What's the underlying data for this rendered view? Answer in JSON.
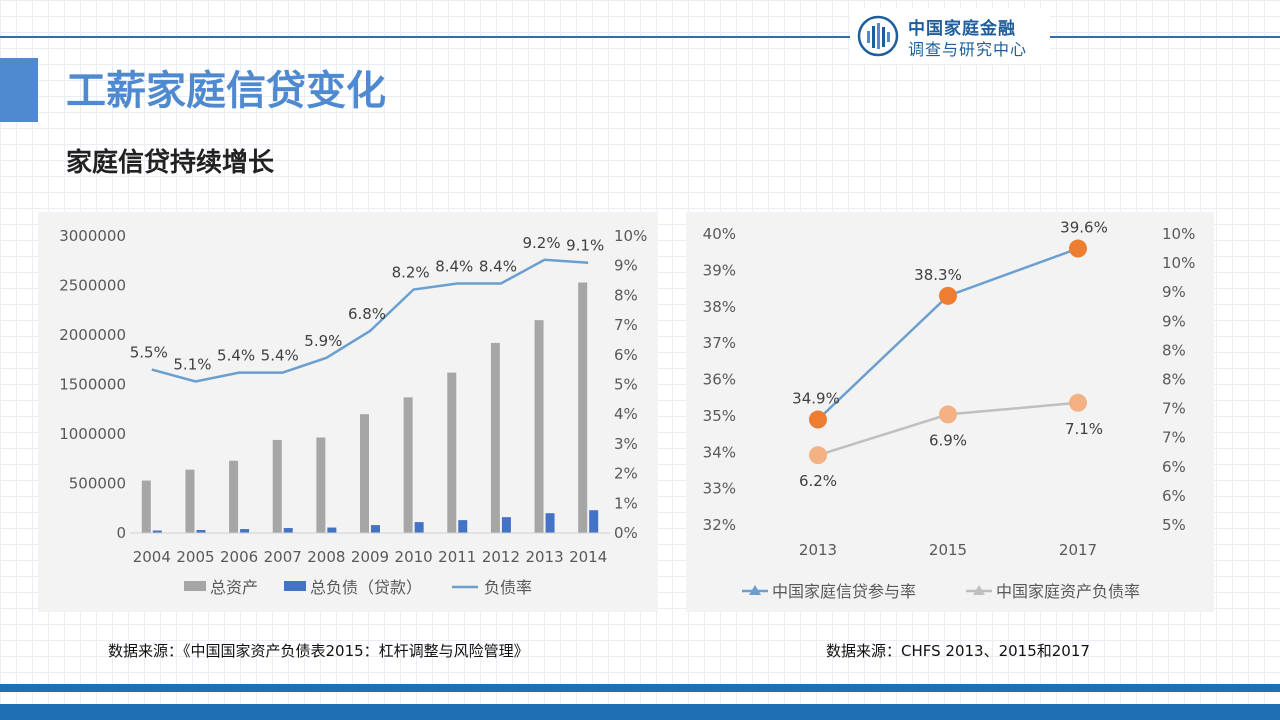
{
  "header": {
    "logo_line1": "中国家庭金融",
    "logo_line2": "调查与研究中心",
    "title": "工薪家庭信贷变化",
    "subtitle": "家庭信贷持续增长"
  },
  "sources": {
    "left": "数据来源：《中国国家资产负债表2015：杠杆调整与风险管理》",
    "right": "数据来源：CHFS 2013、2015和2017"
  },
  "colors": {
    "accent": "#4f8ad0",
    "brand": "#1f6fb5",
    "bar_gray": "#a6a6a6",
    "bar_blue": "#4472c4",
    "line_blue": "#6b9fcf",
    "orange": "#ed7d31",
    "light_orange": "#f4b183",
    "line_gray": "#bfbfbf"
  },
  "chart_data": [
    {
      "type": "bar",
      "categories": [
        "2004",
        "2005",
        "2006",
        "2007",
        "2008",
        "2009",
        "2010",
        "2011",
        "2012",
        "2013",
        "2014"
      ],
      "series": [
        {
          "name": "总资产",
          "axis": "left",
          "values": [
            530000,
            640000,
            730000,
            940000,
            965000,
            1200000,
            1370000,
            1620000,
            1920000,
            2150000,
            2530000
          ]
        },
        {
          "name": "总负债（贷款）",
          "axis": "left",
          "values": [
            25000,
            30000,
            40000,
            50000,
            55000,
            80000,
            110000,
            130000,
            160000,
            200000,
            230000
          ]
        },
        {
          "name": "负债率",
          "type": "line",
          "axis": "right",
          "values": [
            5.5,
            5.1,
            5.4,
            5.4,
            5.9,
            6.8,
            8.2,
            8.4,
            8.4,
            9.2,
            9.1
          ],
          "labels": [
            "5.5%",
            "5.1%",
            "5.4%",
            "5.4%",
            "5.9%",
            "6.8%",
            "8.2%",
            "8.4%",
            "8.4%",
            "9.2%",
            "9.1%"
          ]
        }
      ],
      "ylim": [
        0,
        3000000
      ],
      "yticks": [
        "0",
        "500000",
        "1000000",
        "1500000",
        "2000000",
        "2500000",
        "3000000"
      ],
      "y2lim": [
        0,
        10
      ],
      "y2ticks": [
        "0%",
        "1%",
        "2%",
        "3%",
        "4%",
        "5%",
        "6%",
        "7%",
        "8%",
        "9%",
        "10%"
      ],
      "legend": "bottom"
    },
    {
      "type": "line",
      "categories": [
        "2013",
        "2015",
        "2017"
      ],
      "series": [
        {
          "name": "中国家庭信贷参与率",
          "axis": "left",
          "values": [
            34.9,
            38.3,
            39.6
          ],
          "labels": [
            "34.9%",
            "38.3%",
            "39.6%"
          ]
        },
        {
          "name": "中国家庭资产负债率",
          "axis": "right",
          "values": [
            6.2,
            6.9,
            7.1
          ],
          "labels": [
            "6.2%",
            "6.9%",
            "7.1%"
          ]
        }
      ],
      "ylim": [
        32,
        40
      ],
      "yticks": [
        "32%",
        "33%",
        "34%",
        "35%",
        "36%",
        "37%",
        "38%",
        "39%",
        "40%"
      ],
      "y2lim": [
        5,
        10
      ],
      "y2ticks": [
        "5%",
        "6%",
        "6%",
        "7%",
        "7%",
        "8%",
        "8%",
        "9%",
        "9%",
        "10%",
        "10%"
      ],
      "legend": "bottom"
    }
  ]
}
